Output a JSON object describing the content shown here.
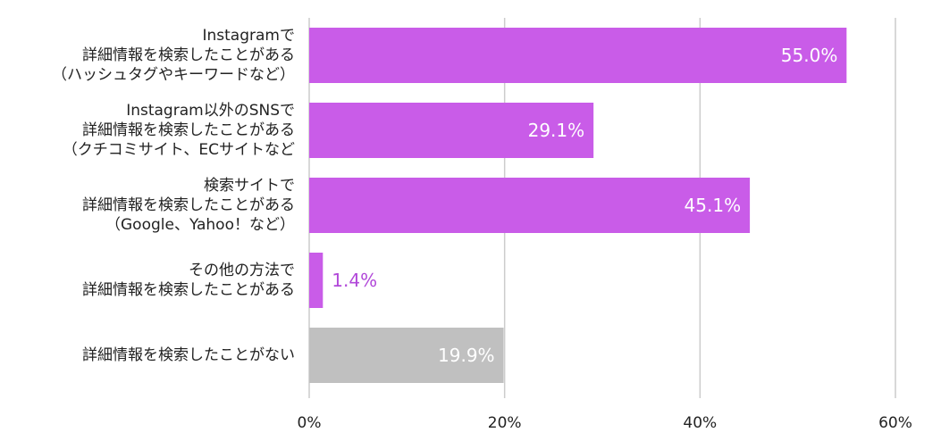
{
  "chart_data": {
    "type": "bar",
    "orientation": "horizontal",
    "categories": [
      [
        "Instagramで",
        "詳細情報を検索したことがある",
        "（ハッシュタグやキーワードなど）"
      ],
      [
        "Instagram以外のSNSで",
        "詳細情報を検索したことがある",
        "（クチコミサイト、ECサイトなど"
      ],
      [
        "検索サイトで",
        "詳細情報を検索したことがある",
        "（Google、Yahoo！など）"
      ],
      [
        "その他の方法で",
        "詳細情報を検索したことがある"
      ],
      [
        "詳細情報を検索したことがない"
      ]
    ],
    "values": [
      55.0,
      29.1,
      45.1,
      1.4,
      19.9
    ],
    "value_labels": [
      "55.0%",
      "29.1%",
      "45.1%",
      "1.4%",
      "19.9%"
    ],
    "colors": [
      "#c95ce8",
      "#c95ce8",
      "#c95ce8",
      "#c95ce8",
      "#c0c0c0"
    ],
    "label_color_inside": "#ffffff",
    "label_color_outside": "#b148d9",
    "xlim": [
      0,
      60
    ],
    "xticks": [
      0,
      20,
      40,
      60
    ],
    "xtick_labels": [
      "0%",
      "20%",
      "40%",
      "60%"
    ],
    "grid": "vertical",
    "gridline_color": "#cccccc",
    "legend": "none",
    "title": "",
    "xlabel": "",
    "ylabel": ""
  }
}
